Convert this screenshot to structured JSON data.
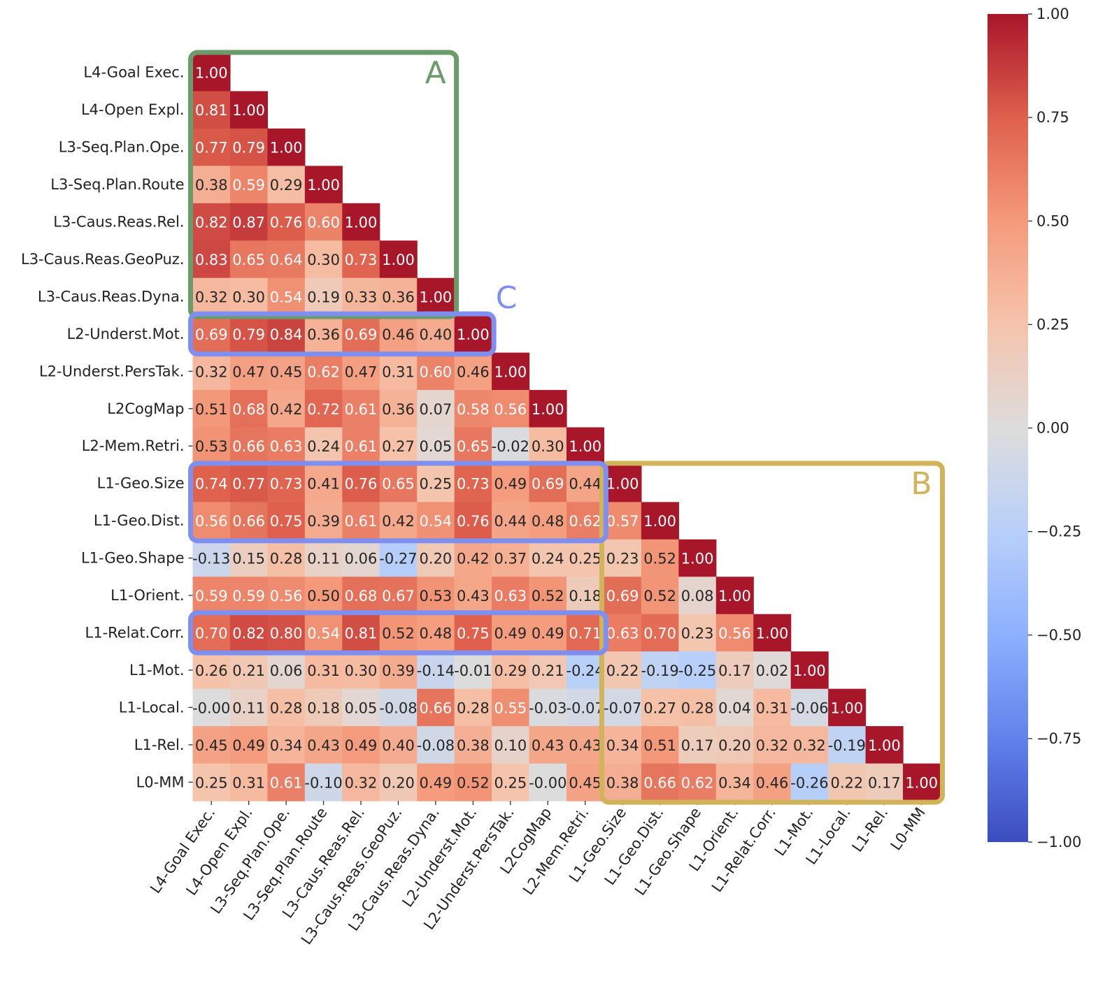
{
  "chart_data": {
    "type": "heatmap",
    "title": "",
    "xlabel": "",
    "ylabel": "",
    "colormap": "coolwarm",
    "vmin": -1.0,
    "vmax": 1.0,
    "mask": "upper triangle",
    "labels": [
      "L4-Goal Exec.",
      "L4-Open Expl.",
      "L3-Seq.Plan.Ope.",
      "L3-Seq.Plan.Route",
      "L3-Caus.Reas.Rel.",
      "L3-Caus.Reas.GeoPuz.",
      "L3-Caus.Reas.Dyna.",
      "L2-Underst.Mot.",
      "L2-Underst.PersTak.",
      "L2CogMap",
      "L2-Mem.Retri.",
      "L1-Geo.Size",
      "L1-Geo.Dist.",
      "L1-Geo.Shape",
      "L1-Orient.",
      "L1-Relat.Corr.",
      "L1-Mot.",
      "L1-Local.",
      "L1-Rel.",
      "L0-MM"
    ],
    "values": [
      [
        1.0
      ],
      [
        0.81,
        1.0
      ],
      [
        0.77,
        0.79,
        1.0
      ],
      [
        0.38,
        0.59,
        0.29,
        1.0
      ],
      [
        0.82,
        0.87,
        0.76,
        0.6,
        1.0
      ],
      [
        0.83,
        0.65,
        0.64,
        0.3,
        0.73,
        1.0
      ],
      [
        0.32,
        0.3,
        0.54,
        0.19,
        0.33,
        0.36,
        1.0
      ],
      [
        0.69,
        0.79,
        0.84,
        0.36,
        0.69,
        0.46,
        0.4,
        1.0
      ],
      [
        0.32,
        0.47,
        0.45,
        0.62,
        0.47,
        0.31,
        0.6,
        0.46,
        1.0
      ],
      [
        0.51,
        0.68,
        0.42,
        0.72,
        0.61,
        0.36,
        0.07,
        0.58,
        0.56,
        1.0
      ],
      [
        0.53,
        0.66,
        0.63,
        0.24,
        0.61,
        0.27,
        0.05,
        0.65,
        -0.02,
        0.3,
        1.0
      ],
      [
        0.74,
        0.77,
        0.73,
        0.41,
        0.76,
        0.65,
        0.25,
        0.73,
        0.49,
        0.69,
        0.44,
        1.0
      ],
      [
        0.56,
        0.66,
        0.75,
        0.39,
        0.61,
        0.42,
        0.54,
        0.76,
        0.44,
        0.48,
        0.62,
        0.57,
        1.0
      ],
      [
        -0.13,
        0.15,
        0.28,
        0.11,
        0.06,
        -0.27,
        0.2,
        0.42,
        0.37,
        0.24,
        0.25,
        0.23,
        0.52,
        1.0
      ],
      [
        0.59,
        0.59,
        0.56,
        0.5,
        0.68,
        0.67,
        0.53,
        0.43,
        0.63,
        0.52,
        0.18,
        0.69,
        0.52,
        0.08,
        1.0
      ],
      [
        0.7,
        0.82,
        0.8,
        0.54,
        0.81,
        0.52,
        0.48,
        0.75,
        0.49,
        0.49,
        0.71,
        0.63,
        0.7,
        0.23,
        0.56,
        1.0
      ],
      [
        0.26,
        0.21,
        0.06,
        0.31,
        0.3,
        0.39,
        -0.14,
        -0.01,
        0.29,
        0.21,
        -0.24,
        0.22,
        -0.19,
        -0.25,
        0.17,
        0.02,
        1.0
      ],
      [
        -0.0,
        0.11,
        0.28,
        0.18,
        0.05,
        -0.08,
        0.66,
        0.28,
        0.55,
        -0.03,
        -0.07,
        -0.07,
        0.27,
        0.28,
        0.04,
        0.31,
        -0.06,
        1.0
      ],
      [
        0.45,
        0.49,
        0.34,
        0.43,
        0.49,
        0.4,
        -0.08,
        0.38,
        0.1,
        0.43,
        0.43,
        0.34,
        0.51,
        0.17,
        0.2,
        0.32,
        0.32,
        -0.19,
        1.0
      ],
      [
        0.25,
        0.31,
        0.61,
        -0.1,
        0.32,
        0.2,
        0.49,
        0.52,
        0.25,
        -0.0,
        0.45,
        0.38,
        0.66,
        0.62,
        0.34,
        0.46,
        -0.26,
        0.22,
        0.17,
        1.0
      ]
    ],
    "colorbar_ticks": [
      "1.00",
      "0.75",
      "0.50",
      "0.25",
      "0.00",
      "−0.25",
      "−0.50",
      "−0.75",
      "−1.00"
    ],
    "annotations": [
      {
        "label": "A",
        "color": "#6b9a6b",
        "rows": [
          0,
          6
        ],
        "cols": [
          0,
          6
        ]
      },
      {
        "label": "B",
        "color": "#d1b35a",
        "rows": [
          11,
          19
        ],
        "cols": [
          11,
          19
        ]
      },
      {
        "label": "C",
        "color": "#7f8ff0",
        "rows": [
          7,
          7
        ],
        "cols": [
          0,
          7
        ]
      },
      {
        "label": "",
        "color": "#7f8ff0",
        "rows": [
          11,
          12
        ],
        "cols": [
          0,
          10
        ]
      },
      {
        "label": "",
        "color": "#7f8ff0",
        "rows": [
          15,
          15
        ],
        "cols": [
          0,
          10
        ]
      }
    ]
  }
}
